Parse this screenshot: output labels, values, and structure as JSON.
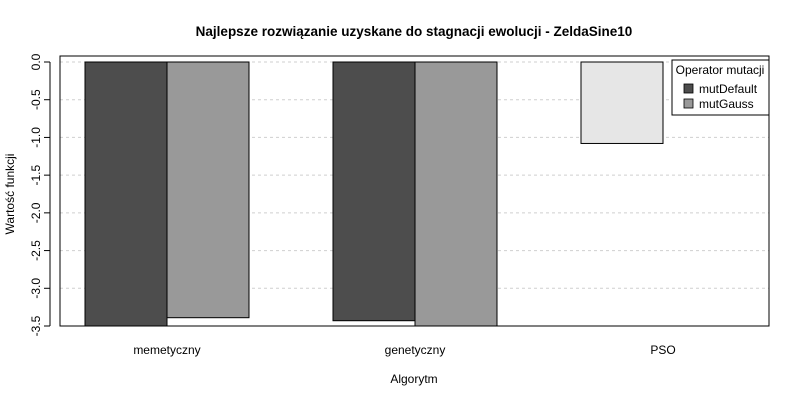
{
  "chart_data": {
    "type": "bar",
    "title": "Najlepsze rozwiązanie uzyskane do stagnacji ewolucji - ZeldaSine10",
    "xlabel": "Algorytm",
    "ylabel": "Wartość funkcji",
    "categories": [
      "memetyczny",
      "genetyczny",
      "PSO"
    ],
    "series": [
      {
        "name": "mutDefault",
        "values": [
          -3.5,
          -3.43,
          null
        ],
        "color": "#4d4d4d"
      },
      {
        "name": "mutGauss",
        "values": [
          -3.39,
          -3.5,
          null
        ],
        "color": "#999999"
      },
      {
        "name": "",
        "values": [
          null,
          null,
          -1.08
        ],
        "color": "#e6e6e6"
      }
    ],
    "ylim": [
      -3.5,
      0
    ],
    "yticks": [
      "0.0",
      "-0.5",
      "-1.0",
      "-1.5",
      "-2.0",
      "-2.5",
      "-3.0",
      "-3.5"
    ],
    "grid": true,
    "legend": {
      "title": "Operator mutacji",
      "placement": "top-right"
    }
  }
}
